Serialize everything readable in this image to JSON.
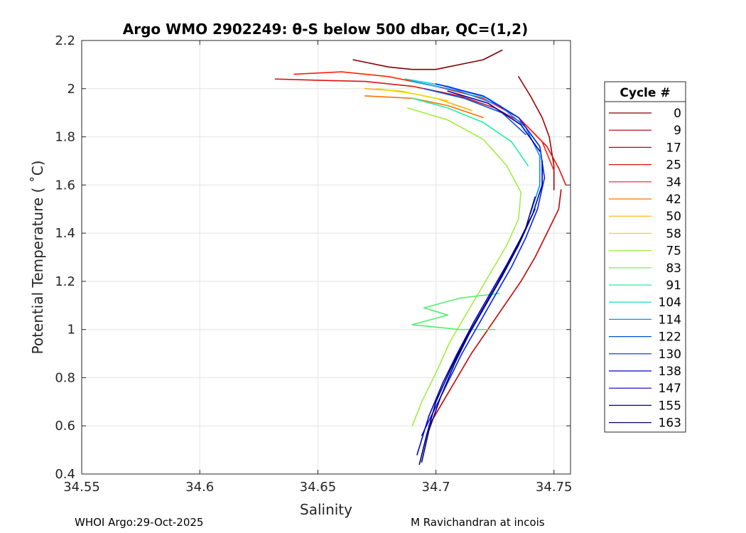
{
  "chart_data": {
    "type": "line",
    "title": "Argo WMO 2902249: θ-S below 500 dbar,  QC=(1,2)",
    "xlabel": "Salinity",
    "ylabel": "Potential Temperature ( ˚C)",
    "xlim": [
      34.55,
      34.757
    ],
    "ylim": [
      0.4,
      2.2
    ],
    "xticks": [
      34.55,
      34.6,
      34.65,
      34.7,
      34.75
    ],
    "xtick_labels": [
      "34.55",
      "34.6",
      "34.65",
      "34.7",
      "34.75"
    ],
    "yticks": [
      0.4,
      0.6,
      0.8,
      1.0,
      1.2,
      1.4,
      1.6,
      1.8,
      2.0,
      2.2
    ],
    "ytick_labels": [
      "0.4",
      "0.6",
      "0.8",
      "1",
      "1.2",
      "1.4",
      "1.6",
      "1.8",
      "2",
      "2.2"
    ],
    "grid": true,
    "colormap": "jet",
    "legend": {
      "title": "Cycle #",
      "placement": "right-outside",
      "entries": [
        {
          "label": "0",
          "color": "#800000"
        },
        {
          "label": "9",
          "color": "#a00000"
        },
        {
          "label": "17",
          "color": "#c80000"
        },
        {
          "label": "25",
          "color": "#e01010"
        },
        {
          "label": "34",
          "color": "#ff2000"
        },
        {
          "label": "42",
          "color": "#ff7000"
        },
        {
          "label": "50",
          "color": "#ffb000"
        },
        {
          "label": "58",
          "color": "#e0e000"
        },
        {
          "label": "75",
          "color": "#a0f040"
        },
        {
          "label": "83",
          "color": "#50f070"
        },
        {
          "label": "91",
          "color": "#20f0a0"
        },
        {
          "label": "104",
          "color": "#00d0e0"
        },
        {
          "label": "114",
          "color": "#0090ff"
        },
        {
          "label": "122",
          "color": "#0050e0"
        },
        {
          "label": "130",
          "color": "#0020ff"
        },
        {
          "label": "138",
          "color": "#0000d0"
        },
        {
          "label": "147",
          "color": "#0000b0"
        },
        {
          "label": "155",
          "color": "#000090"
        },
        {
          "label": "163",
          "color": "#000070"
        }
      ]
    },
    "series": [
      {
        "name": "0",
        "color": "#800000",
        "points": [
          [
            34.728,
            2.16
          ],
          [
            34.72,
            2.12
          ],
          [
            34.71,
            2.1
          ],
          [
            34.7,
            2.08
          ],
          [
            34.69,
            2.08
          ],
          [
            34.68,
            2.09
          ],
          [
            34.67,
            2.11
          ],
          [
            34.665,
            2.12
          ]
        ]
      },
      {
        "name": "9",
        "color": "#a00000",
        "points": [
          [
            34.735,
            2.05
          ],
          [
            34.74,
            1.97
          ],
          [
            34.745,
            1.88
          ],
          [
            34.748,
            1.8
          ],
          [
            34.75,
            1.68
          ],
          [
            34.75,
            1.58
          ]
        ]
      },
      {
        "name": "17",
        "color": "#c80000",
        "points": [
          [
            34.753,
            1.58
          ],
          [
            34.752,
            1.5
          ],
          [
            34.747,
            1.4
          ],
          [
            34.742,
            1.3
          ],
          [
            34.736,
            1.2
          ],
          [
            34.729,
            1.1
          ],
          [
            34.722,
            1.0
          ],
          [
            34.715,
            0.9
          ],
          [
            34.709,
            0.8
          ],
          [
            34.703,
            0.7
          ],
          [
            34.697,
            0.6
          ]
        ]
      },
      {
        "name": "25",
        "color": "#e01010",
        "points": [
          [
            34.632,
            2.04
          ],
          [
            34.65,
            2.035
          ],
          [
            34.67,
            2.03
          ],
          [
            34.69,
            2.01
          ],
          [
            34.71,
            1.97
          ],
          [
            34.725,
            1.92
          ],
          [
            34.738,
            1.85
          ],
          [
            34.747,
            1.76
          ],
          [
            34.752,
            1.67
          ],
          [
            34.755,
            1.6
          ]
        ]
      },
      {
        "name": "34",
        "color": "#ff2000",
        "points": [
          [
            34.64,
            2.06
          ],
          [
            34.66,
            2.07
          ],
          [
            34.68,
            2.05
          ],
          [
            34.7,
            2.01
          ],
          [
            34.72,
            1.96
          ],
          [
            34.735,
            1.88
          ],
          [
            34.745,
            1.78
          ],
          [
            34.75,
            1.66
          ]
        ]
      },
      {
        "name": "42",
        "color": "#ff7000",
        "points": [
          [
            34.67,
            1.97
          ],
          [
            34.69,
            1.96
          ],
          [
            34.705,
            1.93
          ],
          [
            34.72,
            1.88
          ]
        ]
      },
      {
        "name": "50",
        "color": "#ffb000",
        "points": [
          [
            34.67,
            2.0
          ],
          [
            34.685,
            1.99
          ],
          [
            34.7,
            1.96
          ],
          [
            34.715,
            1.91
          ]
        ]
      },
      {
        "name": "58",
        "color": "#e0e000",
        "points": [
          [
            34.675,
            2.0
          ],
          [
            34.69,
            1.98
          ],
          [
            34.705,
            1.95
          ]
        ]
      },
      {
        "name": "75",
        "color": "#a0f040",
        "points": [
          [
            34.688,
            1.92
          ],
          [
            34.705,
            1.87
          ],
          [
            34.72,
            1.79
          ],
          [
            34.73,
            1.68
          ],
          [
            34.736,
            1.57
          ],
          [
            34.735,
            1.46
          ],
          [
            34.73,
            1.35
          ],
          [
            34.724,
            1.25
          ],
          [
            34.718,
            1.15
          ],
          [
            34.712,
            1.05
          ],
          [
            34.706,
            0.95
          ],
          [
            34.7,
            0.82
          ],
          [
            34.694,
            0.7
          ],
          [
            34.69,
            0.6
          ]
        ]
      },
      {
        "name": "83",
        "color": "#50f070",
        "points": [
          [
            34.727,
            1.15
          ],
          [
            34.71,
            1.13
          ],
          [
            34.695,
            1.09
          ],
          [
            34.705,
            1.06
          ],
          [
            34.69,
            1.02
          ],
          [
            34.71,
            1.0
          ],
          [
            34.725,
            1.0
          ]
        ]
      },
      {
        "name": "91",
        "color": "#20f0a0",
        "points": [
          [
            34.69,
            1.96
          ],
          [
            34.705,
            1.92
          ],
          [
            34.72,
            1.86
          ],
          [
            34.732,
            1.78
          ],
          [
            34.739,
            1.68
          ]
        ]
      },
      {
        "name": "104",
        "color": "#00d0e0",
        "points": [
          [
            34.687,
            2.04
          ],
          [
            34.705,
            2.01
          ],
          [
            34.722,
            1.96
          ],
          [
            34.735,
            1.88
          ]
        ]
      },
      {
        "name": "114",
        "color": "#0090ff",
        "points": [
          [
            34.69,
            2.03
          ],
          [
            34.71,
            1.99
          ],
          [
            34.727,
            1.93
          ],
          [
            34.738,
            1.84
          ],
          [
            34.744,
            1.72
          ],
          [
            34.744,
            1.6
          ],
          [
            34.74,
            1.48
          ]
        ]
      },
      {
        "name": "122",
        "color": "#0050e0",
        "points": [
          [
            34.695,
            2.0
          ],
          [
            34.712,
            1.96
          ],
          [
            34.728,
            1.9
          ],
          [
            34.738,
            1.81
          ]
        ]
      },
      {
        "name": "130",
        "color": "#0020ff",
        "points": [
          [
            34.7,
            2.02
          ],
          [
            34.72,
            1.97
          ],
          [
            34.735,
            1.88
          ],
          [
            34.744,
            1.76
          ],
          [
            34.746,
            1.63
          ],
          [
            34.743,
            1.5
          ],
          [
            34.738,
            1.38
          ],
          [
            34.732,
            1.26
          ],
          [
            34.725,
            1.14
          ],
          [
            34.718,
            1.02
          ],
          [
            34.711,
            0.9
          ],
          [
            34.705,
            0.78
          ],
          [
            34.699,
            0.66
          ],
          [
            34.694,
            0.56
          ]
        ]
      },
      {
        "name": "138",
        "color": "#0000d0",
        "points": [
          [
            34.742,
            1.5
          ],
          [
            34.736,
            1.38
          ],
          [
            34.73,
            1.27
          ],
          [
            34.723,
            1.15
          ],
          [
            34.716,
            1.03
          ],
          [
            34.709,
            0.9
          ],
          [
            34.703,
            0.78
          ],
          [
            34.697,
            0.64
          ],
          [
            34.692,
            0.48
          ]
        ]
      },
      {
        "name": "147",
        "color": "#0000b0",
        "points": [
          [
            34.705,
            1.99
          ],
          [
            34.722,
            1.94
          ],
          [
            34.736,
            1.85
          ],
          [
            34.744,
            1.74
          ]
        ]
      },
      {
        "name": "155",
        "color": "#000090",
        "points": [
          [
            34.745,
            1.7
          ],
          [
            34.745,
            1.6
          ],
          [
            34.741,
            1.48
          ],
          [
            34.735,
            1.35
          ],
          [
            34.728,
            1.22
          ],
          [
            34.721,
            1.1
          ],
          [
            34.714,
            0.98
          ],
          [
            34.708,
            0.86
          ],
          [
            34.702,
            0.72
          ],
          [
            34.697,
            0.58
          ],
          [
            34.694,
            0.45
          ]
        ]
      },
      {
        "name": "163",
        "color": "#000070",
        "points": [
          [
            34.742,
            1.55
          ],
          [
            34.738,
            1.42
          ],
          [
            34.732,
            1.3
          ],
          [
            34.726,
            1.19
          ],
          [
            34.719,
            1.07
          ],
          [
            34.712,
            0.95
          ],
          [
            34.706,
            0.83
          ],
          [
            34.7,
            0.7
          ],
          [
            34.696,
            0.56
          ],
          [
            34.693,
            0.44
          ]
        ]
      }
    ]
  },
  "footer": {
    "left": "WHOI Argo:29-Oct-2025",
    "right": "M Ravichandran at incois"
  }
}
